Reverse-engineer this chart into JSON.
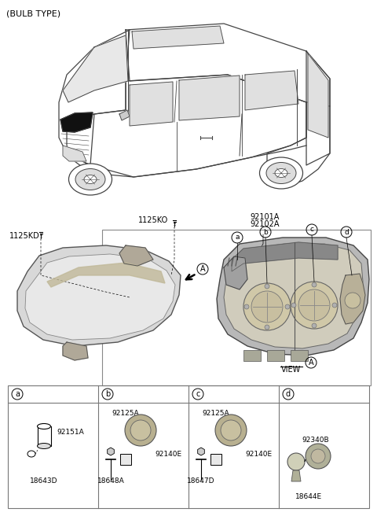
{
  "title": "(BULB TYPE)",
  "bg_color": "#ffffff",
  "bolt1_label": "1125KD",
  "bolt2_label": "1125KO",
  "assy_label1": "92101A",
  "assy_label2": "92102A",
  "view_label": "VIEW",
  "panel_labels": [
    "a",
    "b",
    "c",
    "d"
  ],
  "panel_parts_top": [
    "",
    "92125A",
    "92125A",
    ""
  ],
  "panel_parts_mid": [
    "92151A",
    "92140E",
    "92140E",
    "92340B"
  ],
  "panel_parts_bot": [
    "18643D",
    "18648A",
    "18647D",
    "18644E"
  ],
  "line_color": "#333333",
  "fig_w": 4.8,
  "fig_h": 6.56,
  "dpi": 100
}
